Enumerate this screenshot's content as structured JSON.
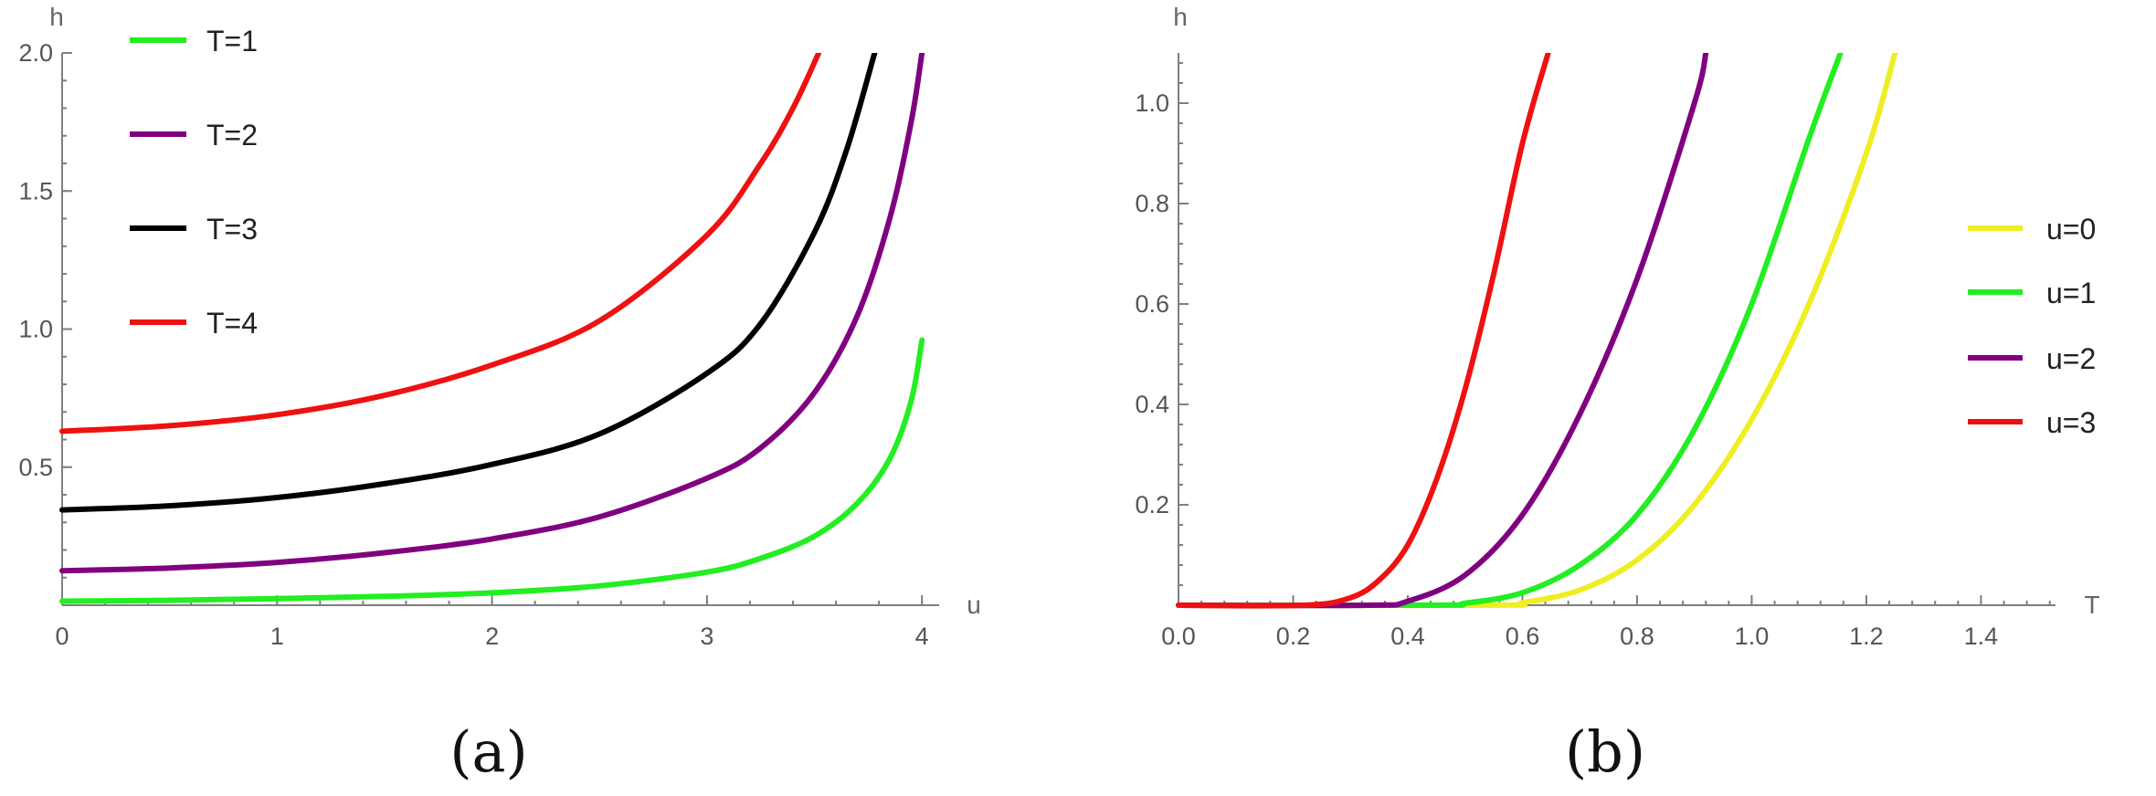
{
  "chart_data": [
    {
      "type": "line",
      "caption": "(a)",
      "xlabel": "u",
      "ylabel": "h",
      "xlim": [
        0,
        4.08
      ],
      "ylim": [
        0,
        2.0
      ],
      "xticks": [
        0,
        1,
        2,
        3,
        4
      ],
      "xtick_labels": [
        "0",
        "1",
        "2",
        "3",
        "4"
      ],
      "yticks": [
        0.5,
        1.0,
        1.5,
        2.0
      ],
      "ytick_labels": [
        "0.5",
        "1.0",
        "1.5",
        "2.0"
      ],
      "grid": false,
      "legend_position": "top-left",
      "series": [
        {
          "name": "T=1",
          "color": "#22ee22",
          "x": [
            0,
            0.5,
            1,
            1.5,
            2,
            2.5,
            3,
            3.25,
            3.5,
            3.7,
            3.85,
            3.95,
            4.0
          ],
          "y": [
            0.015,
            0.018,
            0.024,
            0.032,
            0.045,
            0.07,
            0.12,
            0.17,
            0.25,
            0.37,
            0.53,
            0.74,
            0.96
          ]
        },
        {
          "name": "T=2",
          "color": "#800080",
          "x": [
            0,
            0.5,
            1,
            1.5,
            2,
            2.5,
            3,
            3.25,
            3.5,
            3.7,
            3.85,
            3.95,
            4.0
          ],
          "y": [
            0.125,
            0.135,
            0.155,
            0.19,
            0.24,
            0.32,
            0.46,
            0.57,
            0.77,
            1.05,
            1.4,
            1.75,
            2.0
          ]
        },
        {
          "name": "T=3",
          "color": "#000000",
          "x": [
            0,
            0.5,
            1,
            1.5,
            2,
            2.5,
            3,
            3.25,
            3.5,
            3.65,
            3.78
          ],
          "y": [
            0.345,
            0.36,
            0.39,
            0.44,
            0.51,
            0.62,
            0.84,
            1.02,
            1.35,
            1.65,
            2.0
          ]
        },
        {
          "name": "T=4",
          "color": "#ee1111",
          "x": [
            0,
            0.5,
            1,
            1.5,
            2,
            2.5,
            3,
            3.25,
            3.4,
            3.52
          ],
          "y": [
            0.63,
            0.65,
            0.69,
            0.76,
            0.87,
            1.03,
            1.34,
            1.6,
            1.8,
            2.0
          ]
        }
      ]
    },
    {
      "type": "line",
      "caption": "(b)",
      "xlabel": "T",
      "ylabel": "h",
      "xlim": [
        0,
        1.53
      ],
      "ylim": [
        0,
        1.1
      ],
      "xticks": [
        0.0,
        0.2,
        0.4,
        0.6,
        0.8,
        1.0,
        1.2,
        1.4
      ],
      "xtick_labels": [
        "0.0",
        "0.2",
        "0.4",
        "0.6",
        "0.8",
        "1.0",
        "1.2",
        "1.4"
      ],
      "yticks": [
        0.2,
        0.4,
        0.6,
        0.8,
        1.0
      ],
      "ytick_labels": [
        "0.2",
        "0.4",
        "0.6",
        "0.8",
        "1.0"
      ],
      "grid": false,
      "legend_position": "right",
      "series": [
        {
          "name": "u=0",
          "color": "#eeee22",
          "x": [
            0,
            0.55,
            0.6,
            0.7,
            0.8,
            0.9,
            1.0,
            1.1,
            1.2,
            1.25
          ],
          "y": [
            0,
            0,
            0.005,
            0.03,
            0.09,
            0.2,
            0.37,
            0.6,
            0.9,
            1.1
          ]
        },
        {
          "name": "u=1",
          "color": "#22ee22",
          "x": [
            0,
            0.45,
            0.5,
            0.6,
            0.7,
            0.8,
            0.9,
            1.0,
            1.1,
            1.155
          ],
          "y": [
            0,
            0,
            0.004,
            0.025,
            0.08,
            0.18,
            0.35,
            0.6,
            0.93,
            1.1
          ]
        },
        {
          "name": "u=2",
          "color": "#800080",
          "x": [
            0,
            0.33,
            0.4,
            0.5,
            0.6,
            0.7,
            0.8,
            0.9,
            0.92
          ],
          "y": [
            0,
            0,
            0.008,
            0.06,
            0.18,
            0.38,
            0.65,
            1.0,
            1.1
          ]
        },
        {
          "name": "u=3",
          "color": "#ee1111",
          "x": [
            0,
            0.22,
            0.3,
            0.35,
            0.4,
            0.45,
            0.5,
            0.55,
            0.6,
            0.645
          ],
          "y": [
            0,
            0,
            0.015,
            0.05,
            0.12,
            0.25,
            0.43,
            0.66,
            0.92,
            1.1
          ]
        }
      ]
    }
  ]
}
